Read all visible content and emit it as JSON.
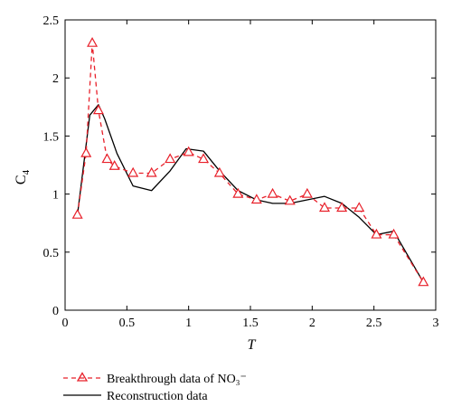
{
  "chart_data": {
    "type": "line",
    "xlabel": "T",
    "ylabel_main": "C",
    "ylabel_sub": "4",
    "xlim": [
      0,
      3
    ],
    "ylim": [
      0,
      2.5
    ],
    "xticks": [
      0,
      0.5,
      1,
      1.5,
      2,
      2.5,
      3
    ],
    "xtick_labels": [
      "0",
      "0.5",
      "1",
      "1.5",
      "2",
      "2.5",
      "3"
    ],
    "yticks": [
      0,
      0.5,
      1,
      1.5,
      2,
      2.5
    ],
    "ytick_labels": [
      "0",
      "0.5",
      "1",
      "1.5",
      "2",
      "2.5"
    ],
    "grid": false,
    "legend_placement": "bottom",
    "series": [
      {
        "name": "Breakthrough data of NO₃⁻",
        "color": "#e8202a",
        "style": "dashed-triangle-markers",
        "x": [
          0.1,
          0.17,
          0.22,
          0.27,
          0.34,
          0.4,
          0.55,
          0.7,
          0.85,
          1.0,
          1.12,
          1.25,
          1.4,
          1.55,
          1.68,
          1.82,
          1.96,
          2.1,
          2.24,
          2.38,
          2.52,
          2.66,
          2.9
        ],
        "y": [
          0.82,
          1.35,
          2.3,
          1.72,
          1.3,
          1.24,
          1.18,
          1.18,
          1.3,
          1.36,
          1.3,
          1.18,
          1.0,
          0.95,
          1.0,
          0.94,
          1.0,
          0.88,
          0.88,
          0.88,
          0.65,
          0.65,
          0.24
        ]
      },
      {
        "name": "Reconstruction data",
        "color": "#000000",
        "style": "solid",
        "x": [
          0.1,
          0.2,
          0.27,
          0.32,
          0.42,
          0.55,
          0.7,
          0.85,
          0.98,
          1.12,
          1.25,
          1.4,
          1.55,
          1.68,
          1.82,
          1.96,
          2.1,
          2.24,
          2.38,
          2.52,
          2.66,
          2.9
        ],
        "y": [
          0.82,
          1.68,
          1.77,
          1.65,
          1.35,
          1.07,
          1.03,
          1.2,
          1.39,
          1.37,
          1.2,
          1.03,
          0.95,
          0.92,
          0.92,
          0.95,
          0.98,
          0.92,
          0.8,
          0.65,
          0.68,
          0.24
        ]
      }
    ]
  }
}
